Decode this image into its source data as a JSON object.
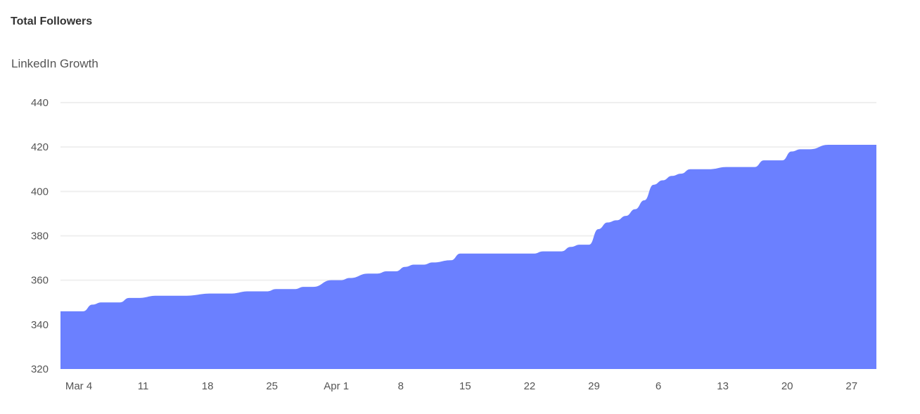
{
  "header": {
    "title": "Total Followers"
  },
  "chart_data": {
    "type": "area",
    "title": "LinkedIn Growth",
    "xlabel": "",
    "ylabel": "",
    "x_range": [
      "2024-03-04",
      "2024-05-29"
    ],
    "ylim": [
      320,
      440
    ],
    "y_ticks": [
      320,
      340,
      360,
      380,
      400,
      420,
      440
    ],
    "x_ticks": [
      {
        "date": "2024-03-04",
        "label": "Mar 4"
      },
      {
        "date": "2024-03-11",
        "label": "11"
      },
      {
        "date": "2024-03-18",
        "label": "18"
      },
      {
        "date": "2024-03-25",
        "label": "25"
      },
      {
        "date": "2024-04-01",
        "label": "Apr 1"
      },
      {
        "date": "2024-04-08",
        "label": "8"
      },
      {
        "date": "2024-04-15",
        "label": "15"
      },
      {
        "date": "2024-04-22",
        "label": "22"
      },
      {
        "date": "2024-04-29",
        "label": "29"
      },
      {
        "date": "2024-05-06",
        "label": "6"
      },
      {
        "date": "2024-05-13",
        "label": "13"
      },
      {
        "date": "2024-05-20",
        "label": "20"
      },
      {
        "date": "2024-05-27",
        "label": "27"
      }
    ],
    "grid": true,
    "legend": "none",
    "color": "#6b80ff",
    "series": [
      {
        "x": [
          "2024-03-04",
          "2024-03-06",
          "2024-03-07",
          "2024-03-08",
          "2024-03-10",
          "2024-03-11",
          "2024-03-12",
          "2024-03-14",
          "2024-03-17",
          "2024-03-20",
          "2024-03-22",
          "2024-03-24",
          "2024-03-26",
          "2024-03-27",
          "2024-03-29",
          "2024-03-30",
          "2024-03-31",
          "2024-04-02",
          "2024-04-03",
          "2024-04-04",
          "2024-04-06",
          "2024-04-07",
          "2024-04-08",
          "2024-04-09",
          "2024-04-10",
          "2024-04-11",
          "2024-04-12",
          "2024-04-13",
          "2024-04-15",
          "2024-04-16",
          "2024-04-24",
          "2024-04-25",
          "2024-04-27",
          "2024-04-28",
          "2024-04-29",
          "2024-04-30",
          "2024-05-01",
          "2024-05-02",
          "2024-05-03",
          "2024-05-04",
          "2024-05-05",
          "2024-05-06",
          "2024-05-07",
          "2024-05-08",
          "2024-05-09",
          "2024-05-10",
          "2024-05-11",
          "2024-05-12",
          "2024-05-13",
          "2024-05-15",
          "2024-05-16",
          "2024-05-18",
          "2024-05-19",
          "2024-05-21",
          "2024-05-22",
          "2024-05-23",
          "2024-05-24",
          "2024-05-26",
          "2024-05-29"
        ],
        "values": [
          346,
          346,
          349,
          350,
          350,
          352,
          352,
          353,
          353,
          354,
          354,
          355,
          355,
          356,
          356,
          357,
          357,
          360,
          360,
          361,
          363,
          363,
          364,
          364,
          366,
          367,
          367,
          368,
          369,
          372,
          372,
          373,
          373,
          375,
          376,
          376,
          383,
          386,
          387,
          389,
          392,
          396,
          403,
          405,
          407,
          408,
          410,
          410,
          410,
          411,
          411,
          411,
          414,
          414,
          418,
          419,
          419,
          421,
          421
        ]
      }
    ]
  }
}
